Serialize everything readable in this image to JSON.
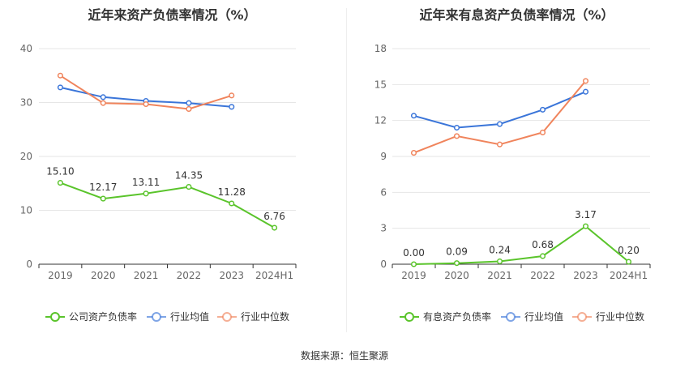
{
  "source": {
    "label": "数据来源：",
    "value": "恒生聚源"
  },
  "colors": {
    "primary": "#5ac42b",
    "avg": "#3a75d9",
    "median": "#f0845c",
    "grid": "#e6e6e6",
    "axis": "#333333",
    "tick": "#666666"
  },
  "chart_data": [
    {
      "type": "line",
      "title": "近年来资产负债率情况（%）",
      "categories": [
        "2019",
        "2020",
        "2021",
        "2022",
        "2023",
        "2024H1"
      ],
      "ylim": [
        0,
        40
      ],
      "yticks": [
        0,
        10,
        20,
        30,
        40
      ],
      "grid": true,
      "legend_position": "bottom",
      "series": [
        {
          "name": "公司资产负债率",
          "color": "#5ac42b",
          "values": [
            15.1,
            12.17,
            13.11,
            14.35,
            11.28,
            6.76
          ],
          "labels": [
            "15.10",
            "12.17",
            "13.11",
            "14.35",
            "11.28",
            "6.76"
          ]
        },
        {
          "name": "行业均值",
          "color": "#3a75d9",
          "values": [
            32.8,
            31.0,
            30.3,
            29.9,
            29.2,
            null
          ]
        },
        {
          "name": "行业中位数",
          "color": "#f0845c",
          "values": [
            35.0,
            29.9,
            29.7,
            28.8,
            31.3,
            null
          ]
        }
      ]
    },
    {
      "type": "line",
      "title": "近年来有息资产负债率情况（%）",
      "categories": [
        "2019",
        "2020",
        "2021",
        "2022",
        "2023",
        "2024H1"
      ],
      "ylim": [
        0,
        18
      ],
      "yticks": [
        0,
        3,
        6,
        9,
        12,
        15,
        18
      ],
      "grid": true,
      "legend_position": "bottom",
      "series": [
        {
          "name": "有息资产负债率",
          "color": "#5ac42b",
          "values": [
            0.0,
            0.09,
            0.24,
            0.68,
            3.17,
            0.2
          ],
          "labels": [
            "0.00",
            "0.09",
            "0.24",
            "0.68",
            "3.17",
            "0.20"
          ]
        },
        {
          "name": "行业均值",
          "color": "#3a75d9",
          "values": [
            12.4,
            11.4,
            11.7,
            12.9,
            14.4,
            null
          ]
        },
        {
          "name": "行业中位数",
          "color": "#f0845c",
          "values": [
            9.3,
            10.7,
            10.0,
            11.0,
            15.3,
            null
          ]
        }
      ]
    }
  ]
}
